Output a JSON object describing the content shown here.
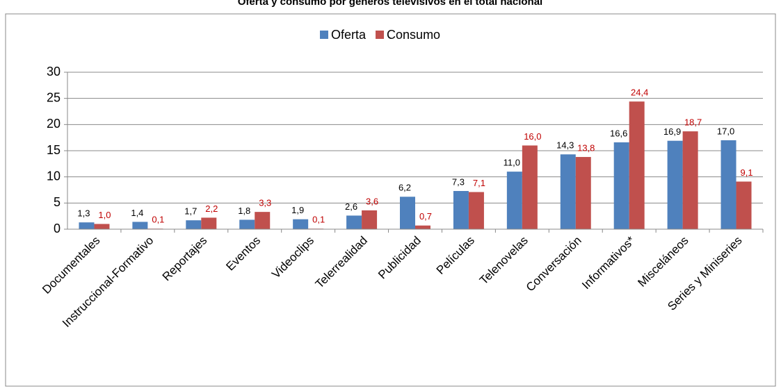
{
  "chart_data": {
    "type": "bar",
    "title": "Oferta y consumo por géneros televisivos en el total nacional",
    "categories": [
      "Documentales",
      "Instruccional-Formativo",
      "Reportajes",
      "Eventos",
      "Videoclips",
      "Telerrealidad",
      "Publicidad",
      "Películas",
      "Telenovelas",
      "Conversación",
      "Informativos*",
      "Misceláneos",
      "Series y Miniseries"
    ],
    "series": [
      {
        "name": "Oferta",
        "color": "#4f81bd",
        "label_color": "#000000",
        "values": [
          1.3,
          1.4,
          1.7,
          1.8,
          1.9,
          2.6,
          6.2,
          7.3,
          11.0,
          14.3,
          16.6,
          16.9,
          17.0
        ],
        "value_labels": [
          "1,3",
          "1,4",
          "1,7",
          "1,8",
          "1,9",
          "2,6",
          "6,2",
          "7,3",
          "11,0",
          "14,3",
          "16,6",
          "16,9",
          "17,0"
        ]
      },
      {
        "name": "Consumo",
        "color": "#c0504d",
        "label_color": "#c00000",
        "values": [
          1.0,
          0.1,
          2.2,
          3.3,
          0.1,
          3.6,
          0.7,
          7.1,
          16.0,
          13.8,
          24.4,
          18.7,
          9.1
        ],
        "value_labels": [
          "1,0",
          "0,1",
          "2,2",
          "3,3",
          "0,1",
          "3,6",
          "0,7",
          "7,1",
          "16,0",
          "13,8",
          "24,4",
          "18,7",
          "9,1"
        ]
      }
    ],
    "ylim": [
      0,
      30
    ],
    "yticks": [
      0,
      5,
      10,
      15,
      20,
      25,
      30
    ],
    "grid": true,
    "legend": "top"
  }
}
